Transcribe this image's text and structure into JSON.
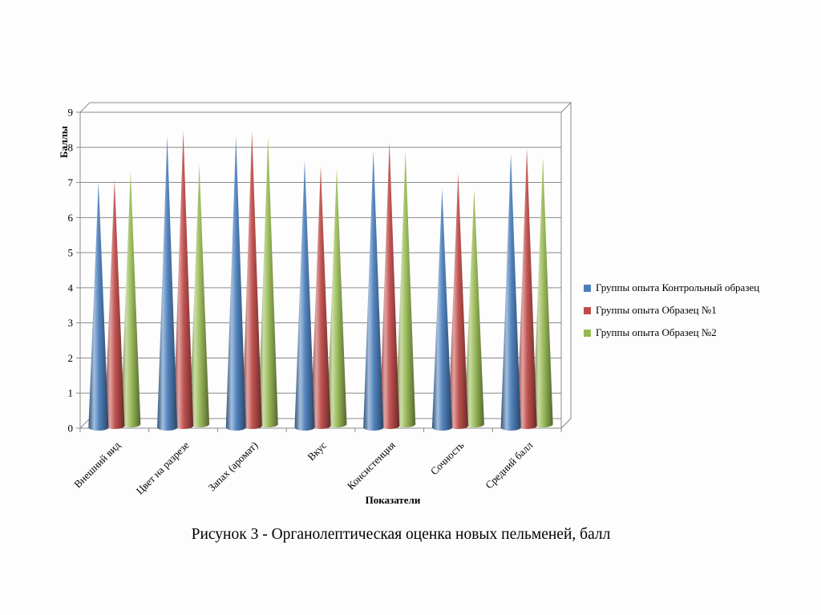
{
  "caption": "Рисунок 3 - Органолептическая оценка новых пельменей, балл",
  "chart_data": {
    "type": "bar",
    "subtype": "3d-cone",
    "title": "",
    "xlabel": "Показатели",
    "ylabel": "Баллы",
    "ylim": [
      0,
      9
    ],
    "yticks": [
      0,
      1,
      2,
      3,
      4,
      5,
      6,
      7,
      8,
      9
    ],
    "grid": true,
    "legend_position": "right",
    "categories": [
      "Внешний вид",
      "Цвет на разрезе",
      "Запах (аромат)",
      "Вкус",
      "Консистенция",
      "Сочность",
      "Средний балл"
    ],
    "series": [
      {
        "name": "Группы опыта Контрольный образец",
        "color": "#4a7ebb",
        "values": [
          7.0,
          8.3,
          8.3,
          7.6,
          7.9,
          6.8,
          7.8
        ]
      },
      {
        "name": "Группы опыта Образец №1",
        "color": "#be4b48",
        "values": [
          7.0,
          8.4,
          8.4,
          7.4,
          8.1,
          7.2,
          7.9
        ]
      },
      {
        "name": "Группы опыта Образец №2",
        "color": "#98b954",
        "values": [
          7.2,
          7.4,
          8.2,
          7.3,
          7.8,
          6.7,
          7.6
        ]
      }
    ]
  }
}
